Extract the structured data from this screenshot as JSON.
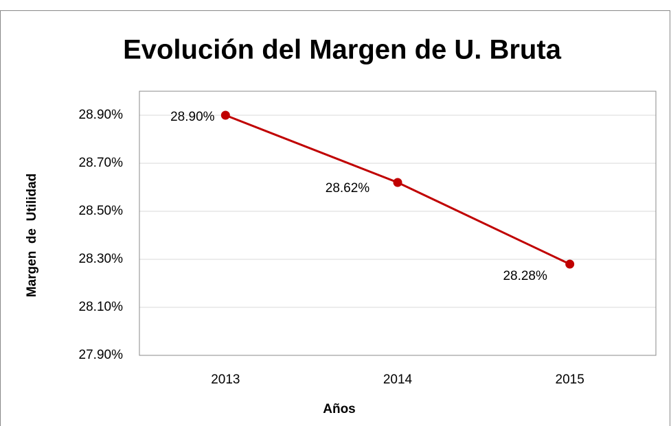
{
  "chart_data": {
    "type": "line",
    "title": "Evolución del Margen de U. Bruta",
    "x_label": "Años",
    "y_label": "Margen  de  Utilidad",
    "categories": [
      "2013",
      "2014",
      "2015"
    ],
    "series": [
      {
        "name": "Margen de U. Bruta",
        "color": "#c00000",
        "values": [
          28.9,
          28.62,
          28.28
        ],
        "value_labels": [
          "28.90%",
          "28.62%",
          "28.28%"
        ]
      }
    ],
    "ylim": [
      27.9,
      29.0
    ],
    "yticks": [
      {
        "value": 27.9,
        "label": "27.90%"
      },
      {
        "value": 28.1,
        "label": "28.10%"
      },
      {
        "value": 28.3,
        "label": "28.30%"
      },
      {
        "value": 28.5,
        "label": "28.50%"
      },
      {
        "value": 28.7,
        "label": "28.70%"
      },
      {
        "value": 28.9,
        "label": "28.90%"
      }
    ],
    "grid": true
  }
}
